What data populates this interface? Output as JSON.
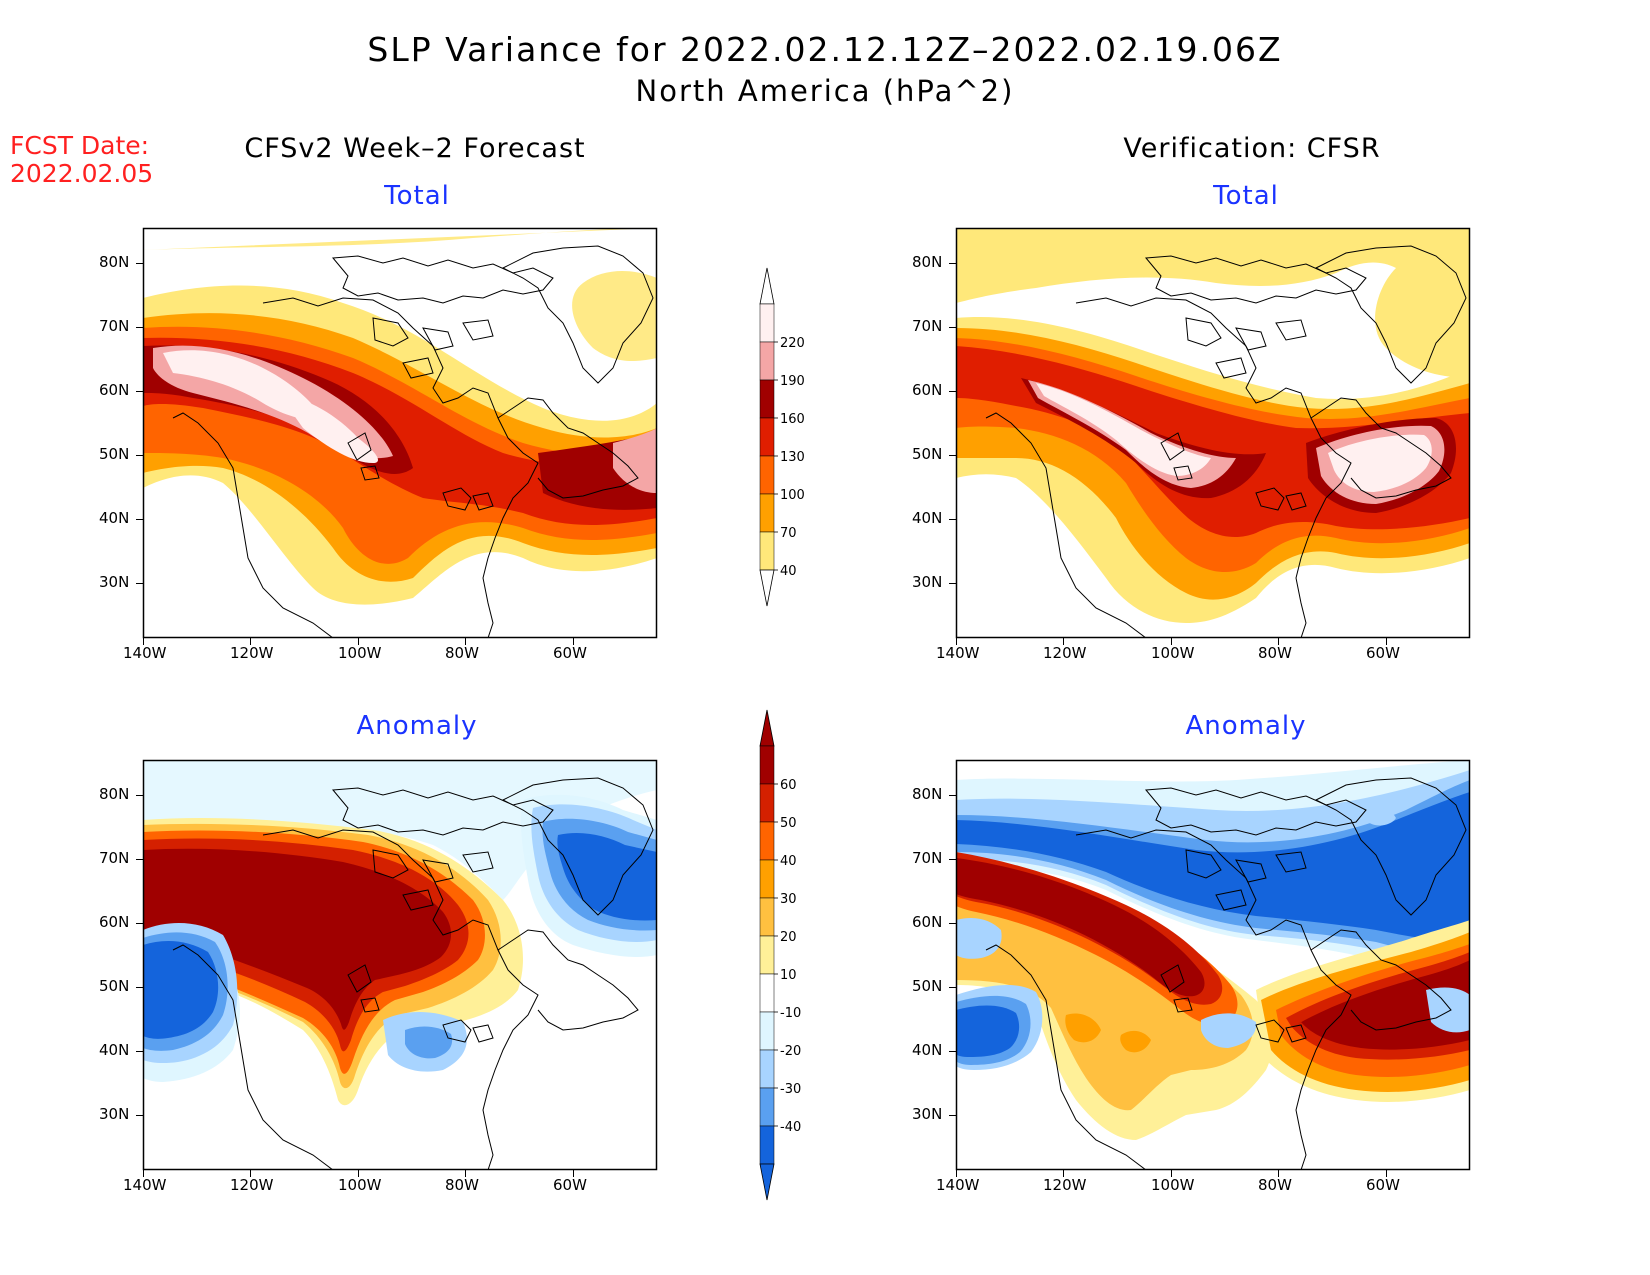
{
  "title": {
    "line1": "SLP Variance for 2022.02.12.12Z–2022.02.19.06Z",
    "line2": "North America (hPa^2)"
  },
  "fcst_date": {
    "label": "FCST Date:",
    "value": "2022.02.05"
  },
  "columns": {
    "left": "CFSv2 Week–2 Forecast",
    "right": "Verification: CFSR"
  },
  "panels": [
    {
      "id": "fcst-total",
      "title": "Total"
    },
    {
      "id": "verif-total",
      "title": "Total"
    },
    {
      "id": "fcst-anomaly",
      "title": "Anomaly"
    },
    {
      "id": "verif-anomaly",
      "title": "Anomaly"
    }
  ],
  "axes": {
    "lat_labels": [
      "80N",
      "70N",
      "60N",
      "50N",
      "40N",
      "30N"
    ],
    "lon_labels": [
      "140W",
      "120W",
      "100W",
      "80W",
      "60W"
    ]
  },
  "colorbar_total": {
    "levels": [
      "220",
      "190",
      "160",
      "130",
      "100",
      "70",
      "40"
    ],
    "colors": [
      "#fff0f0",
      "#f4a6a6",
      "#a00000",
      "#e01e00",
      "#ff6400",
      "#ffa000",
      "#ffe87a"
    ]
  },
  "colorbar_anomaly": {
    "levels": [
      "60",
      "50",
      "40",
      "30",
      "20",
      "10",
      "-10",
      "-20",
      "-30",
      "-40"
    ],
    "colors": [
      "#a00000",
      "#d42000",
      "#ff6400",
      "#ffa000",
      "#ffc040",
      "#fff098",
      "#ffffff",
      "#dff6ff",
      "#a8d4ff",
      "#5aa0f0",
      "#1464dc"
    ]
  },
  "colors": {
    "fcst_red": "#ff2020",
    "panel_title_blue": "#1a33ff"
  }
}
